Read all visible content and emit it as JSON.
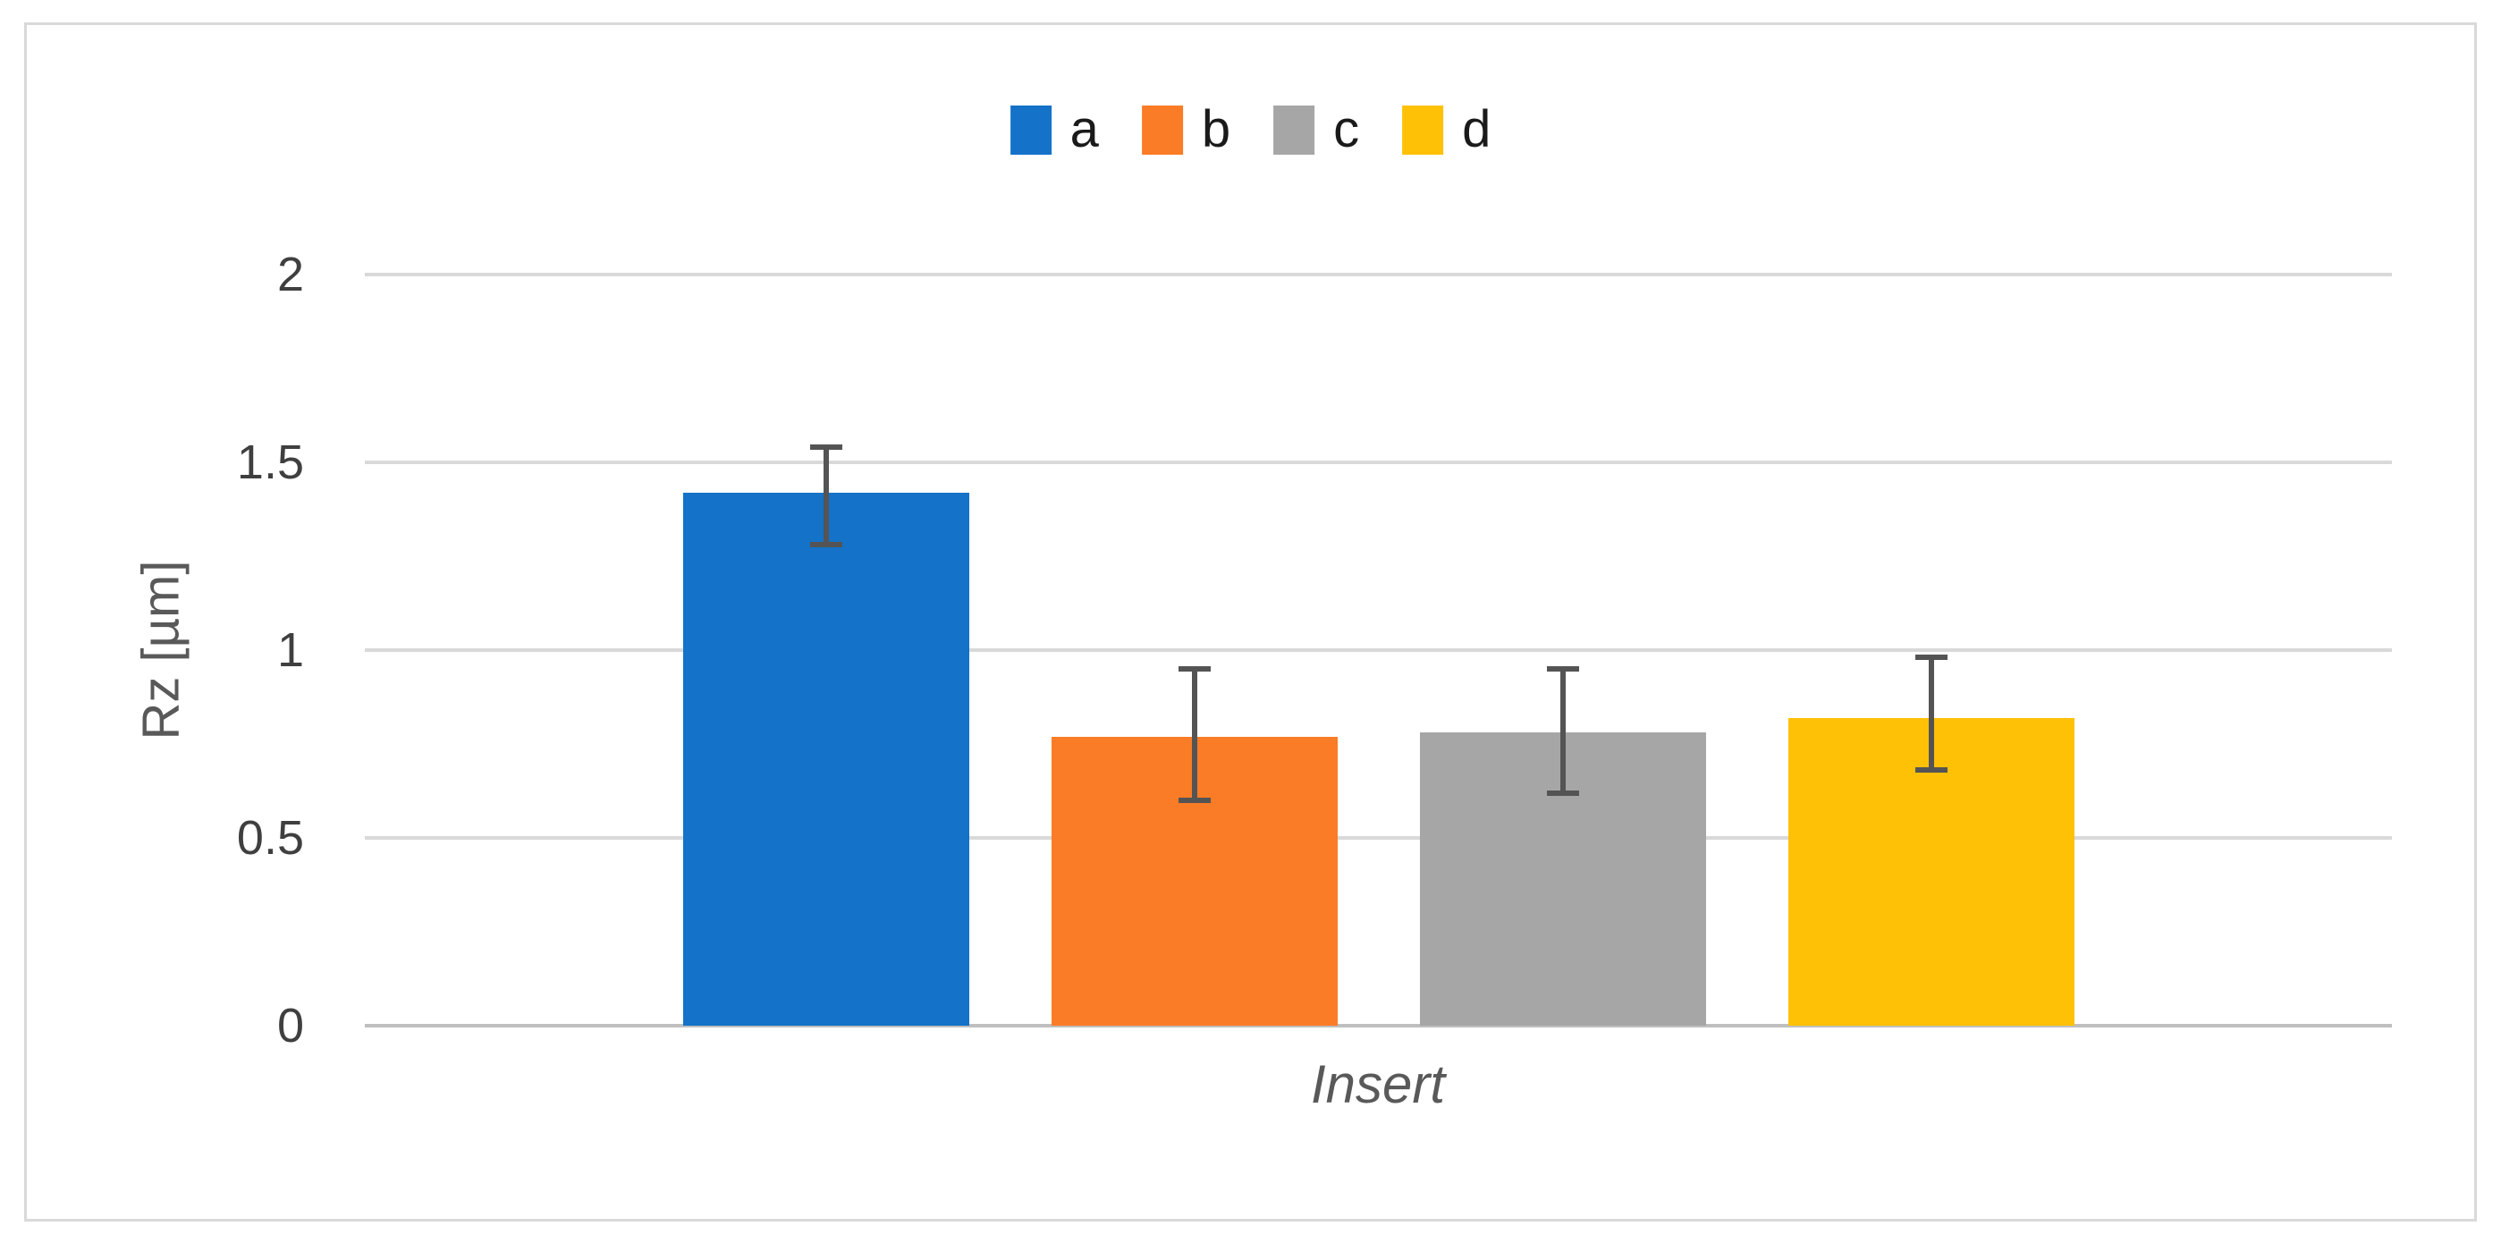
{
  "chart_data": {
    "type": "bar",
    "title": "",
    "xlabel": "Insert",
    "ylabel": "Rz [µm]",
    "ylim": [
      0,
      2
    ],
    "yticks": [
      0,
      0.5,
      1,
      1.5,
      2
    ],
    "ytick_labels": [
      "0",
      "0.5",
      "1",
      "1.5",
      "2"
    ],
    "categories": [
      "Insert"
    ],
    "series": [
      {
        "name": "a",
        "color": "#1472C8",
        "value": 1.42,
        "error_low": 1.28,
        "error_high": 1.54
      },
      {
        "name": "b",
        "color": "#FB7C26",
        "value": 0.77,
        "error_low": 0.6,
        "error_high": 0.95
      },
      {
        "name": "c",
        "color": "#A6A6A6",
        "value": 0.78,
        "error_low": 0.62,
        "error_high": 0.95
      },
      {
        "name": "d",
        "color": "#FFC105",
        "value": 0.82,
        "error_low": 0.68,
        "error_high": 0.98
      }
    ],
    "legend_position": "top-center",
    "legend_labels": [
      "a",
      "b",
      "c",
      "d"
    ],
    "grid": "horizontal",
    "error_bar_color": "#545454",
    "gridline_color": "#D9D9D9",
    "axis_line_color": "#BFBFBF"
  }
}
